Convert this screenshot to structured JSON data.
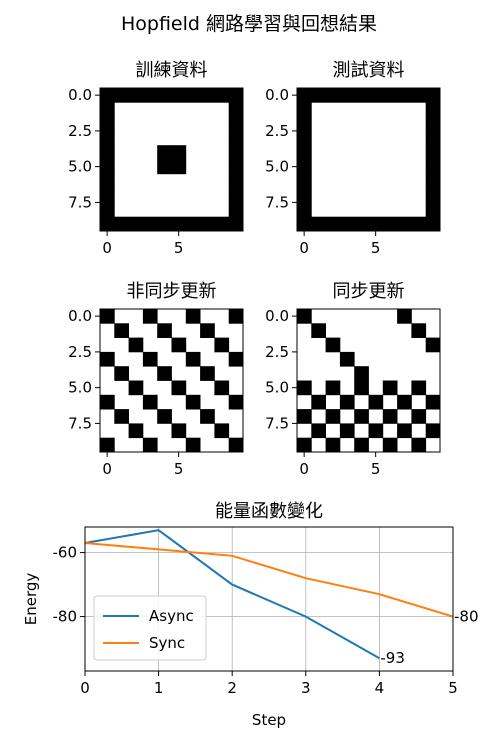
{
  "figure": {
    "title": "Hopfield 網路學習與回想結果"
  },
  "chart_data": [
    {
      "type": "heatmap",
      "title": "訓練資料",
      "x_ticks": [
        0,
        5
      ],
      "y_ticks": [
        "0.0",
        "2.5",
        "5.0",
        "7.5"
      ],
      "grid": [
        [
          1,
          1,
          1,
          1,
          1,
          1,
          1,
          1,
          1,
          1
        ],
        [
          1,
          0,
          0,
          0,
          0,
          0,
          0,
          0,
          0,
          1
        ],
        [
          1,
          0,
          0,
          0,
          0,
          0,
          0,
          0,
          0,
          1
        ],
        [
          1,
          0,
          0,
          0,
          0,
          0,
          0,
          0,
          0,
          1
        ],
        [
          1,
          0,
          0,
          0,
          1,
          1,
          0,
          0,
          0,
          1
        ],
        [
          1,
          0,
          0,
          0,
          1,
          1,
          0,
          0,
          0,
          1
        ],
        [
          1,
          0,
          0,
          0,
          0,
          0,
          0,
          0,
          0,
          1
        ],
        [
          1,
          0,
          0,
          0,
          0,
          0,
          0,
          0,
          0,
          1
        ],
        [
          1,
          0,
          0,
          0,
          0,
          0,
          0,
          0,
          0,
          1
        ],
        [
          1,
          1,
          1,
          1,
          1,
          1,
          1,
          1,
          1,
          1
        ]
      ]
    },
    {
      "type": "heatmap",
      "title": "測試資料",
      "x_ticks": [
        0,
        5
      ],
      "y_ticks": [
        "0.0",
        "2.5",
        "5.0",
        "7.5"
      ],
      "grid": [
        [
          1,
          1,
          1,
          1,
          1,
          1,
          1,
          1,
          1,
          1
        ],
        [
          1,
          0,
          0,
          0,
          0,
          0,
          0,
          0,
          0,
          1
        ],
        [
          1,
          0,
          0,
          0,
          0,
          0,
          0,
          0,
          0,
          1
        ],
        [
          1,
          0,
          0,
          0,
          0,
          0,
          0,
          0,
          0,
          1
        ],
        [
          1,
          0,
          0,
          0,
          0,
          0,
          0,
          0,
          0,
          1
        ],
        [
          1,
          0,
          0,
          0,
          0,
          0,
          0,
          0,
          0,
          1
        ],
        [
          1,
          0,
          0,
          0,
          0,
          0,
          0,
          0,
          0,
          1
        ],
        [
          1,
          0,
          0,
          0,
          0,
          0,
          0,
          0,
          0,
          1
        ],
        [
          1,
          0,
          0,
          0,
          0,
          0,
          0,
          0,
          0,
          1
        ],
        [
          1,
          1,
          1,
          1,
          1,
          1,
          1,
          1,
          1,
          1
        ]
      ]
    },
    {
      "type": "heatmap",
      "title": "非同步更新",
      "x_ticks": [
        0,
        5
      ],
      "y_ticks": [
        "0.0",
        "2.5",
        "5.0",
        "7.5"
      ],
      "grid": [
        [
          1,
          0,
          0,
          1,
          0,
          0,
          1,
          0,
          0,
          1
        ],
        [
          0,
          1,
          0,
          0,
          1,
          0,
          0,
          1,
          0,
          0
        ],
        [
          0,
          0,
          1,
          0,
          0,
          1,
          0,
          0,
          1,
          0
        ],
        [
          1,
          0,
          0,
          1,
          0,
          0,
          1,
          0,
          0,
          1
        ],
        [
          0,
          1,
          0,
          0,
          1,
          0,
          0,
          1,
          0,
          0
        ],
        [
          0,
          0,
          1,
          0,
          0,
          1,
          0,
          0,
          1,
          0
        ],
        [
          1,
          0,
          0,
          1,
          0,
          0,
          1,
          0,
          0,
          1
        ],
        [
          0,
          1,
          0,
          0,
          1,
          0,
          0,
          1,
          0,
          0
        ],
        [
          0,
          0,
          1,
          0,
          0,
          1,
          0,
          0,
          1,
          0
        ],
        [
          1,
          0,
          0,
          1,
          0,
          0,
          1,
          0,
          0,
          1
        ]
      ]
    },
    {
      "type": "heatmap",
      "title": "同步更新",
      "x_ticks": [
        0,
        5
      ],
      "y_ticks": [
        "0.0",
        "2.5",
        "5.0",
        "7.5"
      ],
      "grid": [
        [
          1,
          0,
          0,
          0,
          0,
          0,
          0,
          1,
          0,
          0
        ],
        [
          0,
          1,
          0,
          0,
          0,
          0,
          0,
          0,
          1,
          0
        ],
        [
          0,
          0,
          1,
          0,
          0,
          0,
          0,
          0,
          0,
          1
        ],
        [
          0,
          0,
          0,
          1,
          0,
          0,
          0,
          0,
          0,
          0
        ],
        [
          0,
          0,
          0,
          0,
          1,
          0,
          0,
          0,
          0,
          0
        ],
        [
          1,
          0,
          1,
          0,
          1,
          0,
          1,
          0,
          1,
          0
        ],
        [
          0,
          1,
          0,
          1,
          0,
          1,
          0,
          1,
          0,
          1
        ],
        [
          1,
          0,
          1,
          0,
          1,
          0,
          1,
          0,
          1,
          0
        ],
        [
          0,
          1,
          0,
          1,
          0,
          1,
          0,
          1,
          0,
          1
        ],
        [
          1,
          0,
          1,
          0,
          1,
          0,
          1,
          0,
          1,
          0
        ]
      ]
    },
    {
      "type": "line",
      "title": "能量函數變化",
      "xlabel": "Step",
      "ylabel": "Energy",
      "xlim": [
        0,
        5
      ],
      "ylim": [
        -97,
        -52
      ],
      "x_ticks": [
        0,
        1,
        2,
        3,
        4,
        5
      ],
      "y_ticks": [
        -60,
        -80
      ],
      "grid": true,
      "legend": "lower-left",
      "series": [
        {
          "name": "Async",
          "color": "#1f77b4",
          "x": [
            0,
            1,
            2,
            3,
            4
          ],
          "y": [
            -57,
            -53,
            -70,
            -80,
            -93
          ],
          "end_label": "-93"
        },
        {
          "name": "Sync",
          "color": "#ff7f0e",
          "x": [
            0,
            1,
            2,
            3,
            4,
            5
          ],
          "y": [
            -57,
            -59,
            -61,
            -68,
            -73,
            -80
          ],
          "end_label": "-80"
        }
      ]
    }
  ]
}
